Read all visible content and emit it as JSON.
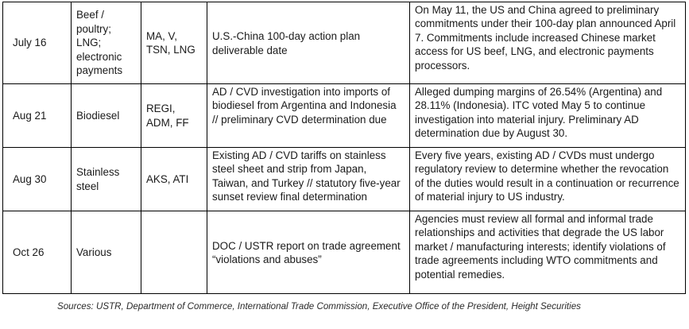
{
  "table": {
    "rows": [
      {
        "date": "July 16",
        "sector": "Beef / poultry; LNG; electronic payments",
        "tickers": "MA, V, TSN, LNG",
        "event": "U.S.-China 100-day action plan deliverable date",
        "details": "On May 11, the US and China agreed to preliminary commitments under their 100-day plan announced April 7. Commitments include increased Chinese market access for US beef, LNG, and electronic payments processors."
      },
      {
        "date": "Aug 21",
        "sector": "Biodiesel",
        "tickers": "REGI, ADM, FF",
        "event": "AD / CVD investigation into imports of biodiesel from Argentina and Indonesia // preliminary CVD determination due",
        "details": "Alleged dumping margins of 26.54% (Argentina) and 28.11% (Indonesia). ITC voted May 5 to continue investigation into material injury. Preliminary AD determination due by August 30."
      },
      {
        "date": "Aug 30",
        "sector": "Stainless steel",
        "tickers": "AKS, ATI",
        "event": "Existing AD / CVD tariffs on stainless steel sheet and strip from Japan, Taiwan, and Turkey // statutory five-year sunset review final determination",
        "details": "Every five years, existing AD / CVDs must undergo regulatory review to determine whether the revocation of the duties would result in a continuation or recurrence of material injury to US industry."
      },
      {
        "date": "Oct 26",
        "sector": "Various",
        "tickers": "",
        "event": "DOC / USTR report on trade agreement “violations and abuses”",
        "details": "Agencies must review all formal and informal trade relationships and activities that degrade the US labor market / manufacturing interests; identify violations of trade agreements including WTO commitments and potential remedies."
      }
    ]
  },
  "footer": {
    "sources": "Sources: USTR, Department of Commerce, International Trade Commission, Executive Office of the President, Height Securities"
  }
}
